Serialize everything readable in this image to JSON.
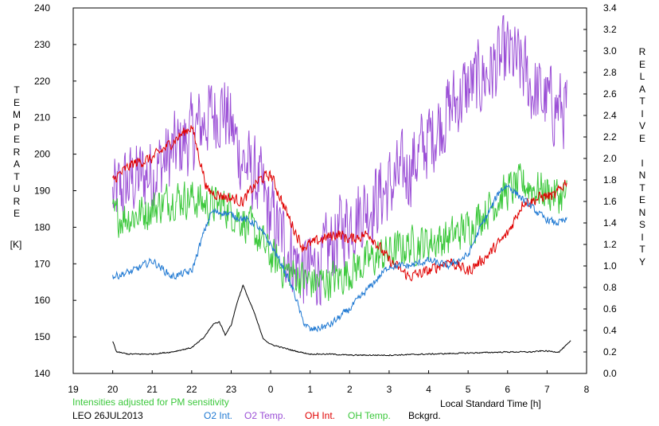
{
  "chart_data": {
    "type": "line",
    "title": "",
    "xlabel": "Local Standard Time [h]",
    "ylabel_left": "TEMPERATURE",
    "ylabel_left_unit": "[K]",
    "ylabel_right": "RELATIVE INTENSITY",
    "x_ticks": [
      "19",
      "20",
      "21",
      "22",
      "23",
      "0",
      "1",
      "2",
      "3",
      "4",
      "5",
      "6",
      "7",
      "8"
    ],
    "xlim": [
      19,
      32
    ],
    "ylim_left": [
      140,
      240
    ],
    "y_ticks_left": [
      140,
      150,
      160,
      170,
      180,
      190,
      200,
      210,
      220,
      230,
      240
    ],
    "ylim_right": [
      0.0,
      3.4
    ],
    "y_ticks_right": [
      "0.0",
      "0.2",
      "0.4",
      "0.6",
      "0.8",
      "1.0",
      "1.2",
      "1.4",
      "1.6",
      "1.8",
      "2.0",
      "2.2",
      "2.4",
      "2.6",
      "2.8",
      "3.0",
      "3.2",
      "3.4"
    ],
    "grid": false,
    "note": "Intensities adjusted for PM sensitivity",
    "station_date": "LEO 26JUL2013",
    "legend": [
      {
        "label": "O2 Int.",
        "color": "#1e78d2"
      },
      {
        "label": "O2 Temp.",
        "color": "#9b4fd6"
      },
      {
        "label": "OH Int.",
        "color": "#e00000"
      },
      {
        "label": "OH Temp.",
        "color": "#3cc83c"
      },
      {
        "label": "Bckgrd.",
        "color": "#000000"
      }
    ],
    "series": [
      {
        "name": "O2 Temp.",
        "axis": "left",
        "color": "#9b4fd6",
        "jitter": 14,
        "x": [
          20.0,
          20.5,
          21.0,
          21.5,
          22.0,
          22.4,
          22.8,
          23.3,
          23.7,
          24.0,
          24.4,
          24.8,
          25.0,
          25.3,
          25.7,
          26.0,
          26.5,
          27.0,
          27.5,
          28.0,
          28.5,
          29.0,
          29.5,
          30.0,
          30.4,
          30.6,
          30.9,
          31.2,
          31.5
        ],
        "y": [
          188,
          193,
          195,
          200,
          205,
          210,
          213,
          198,
          192,
          183,
          175,
          168,
          168,
          170,
          178,
          182,
          186,
          191,
          196,
          204,
          212,
          218,
          222,
          227,
          223,
          218,
          215,
          213,
          212
        ]
      },
      {
        "name": "OH Temp.",
        "axis": "left",
        "color": "#3cc83c",
        "jitter": 7,
        "x": [
          20.0,
          20.5,
          21.0,
          21.5,
          22.0,
          22.4,
          22.8,
          23.3,
          23.7,
          24.0,
          24.4,
          24.8,
          25.0,
          25.3,
          25.7,
          26.0,
          26.5,
          27.0,
          27.5,
          28.0,
          28.5,
          29.0,
          29.5,
          30.0,
          30.4,
          30.6,
          30.9,
          31.2,
          31.5
        ],
        "y": [
          183,
          183,
          185,
          188,
          188,
          186,
          186,
          182,
          177,
          172,
          168,
          166,
          165,
          165,
          166,
          168,
          171,
          173,
          175,
          176,
          177,
          180,
          185,
          190,
          192,
          191,
          190,
          189,
          188
        ]
      },
      {
        "name": "OH Int.",
        "axis": "right",
        "color": "#e00000",
        "jitter": 0.07,
        "x": [
          20.0,
          20.5,
          21.0,
          21.5,
          22.0,
          22.4,
          22.8,
          23.3,
          23.7,
          24.0,
          24.4,
          24.8,
          25.0,
          25.3,
          25.7,
          26.0,
          26.5,
          27.0,
          27.5,
          28.0,
          28.5,
          29.0,
          29.5,
          30.0,
          30.4,
          30.6,
          30.9,
          31.2,
          31.5
        ],
        "y": [
          1.8,
          1.95,
          2.0,
          2.15,
          2.3,
          1.7,
          1.65,
          1.6,
          1.8,
          1.85,
          1.5,
          1.18,
          1.2,
          1.25,
          1.3,
          1.25,
          1.3,
          1.05,
          0.9,
          0.95,
          1.05,
          0.95,
          1.1,
          1.3,
          1.6,
          1.6,
          1.65,
          1.65,
          1.8
        ]
      },
      {
        "name": "O2 Int.",
        "axis": "right",
        "color": "#1e78d2",
        "jitter": 0.045,
        "x": [
          20.0,
          20.5,
          21.0,
          21.5,
          22.0,
          22.3,
          22.5,
          22.8,
          23.2,
          23.6,
          24.0,
          24.3,
          24.6,
          24.8,
          25.0,
          25.5,
          26.0,
          26.5,
          27.0,
          27.5,
          28.0,
          28.5,
          29.0,
          29.3,
          29.6,
          29.8,
          30.0,
          30.3,
          30.6,
          30.9,
          31.2,
          31.5
        ],
        "y": [
          0.9,
          0.95,
          1.05,
          0.9,
          0.95,
          1.3,
          1.5,
          1.5,
          1.45,
          1.4,
          1.2,
          1.0,
          0.75,
          0.5,
          0.4,
          0.45,
          0.6,
          0.8,
          1.0,
          1.0,
          1.05,
          1.0,
          1.1,
          1.35,
          1.55,
          1.7,
          1.75,
          1.65,
          1.55,
          1.45,
          1.4,
          1.42
        ]
      },
      {
        "name": "Bckgrd.",
        "axis": "right",
        "color": "#000000",
        "jitter": 0.012,
        "x": [
          20.0,
          20.1,
          20.4,
          21.0,
          21.5,
          22.0,
          22.3,
          22.55,
          22.7,
          22.85,
          23.0,
          23.15,
          23.3,
          23.6,
          23.8,
          24.0,
          24.3,
          24.6,
          25.0,
          25.5,
          26.0,
          27.0,
          28.0,
          29.0,
          30.0,
          30.6,
          30.9,
          31.3,
          31.6
        ],
        "y": [
          0.3,
          0.2,
          0.18,
          0.18,
          0.2,
          0.24,
          0.33,
          0.46,
          0.48,
          0.36,
          0.45,
          0.66,
          0.82,
          0.55,
          0.33,
          0.27,
          0.24,
          0.21,
          0.18,
          0.18,
          0.17,
          0.17,
          0.18,
          0.19,
          0.2,
          0.2,
          0.21,
          0.2,
          0.3
        ]
      }
    ]
  }
}
